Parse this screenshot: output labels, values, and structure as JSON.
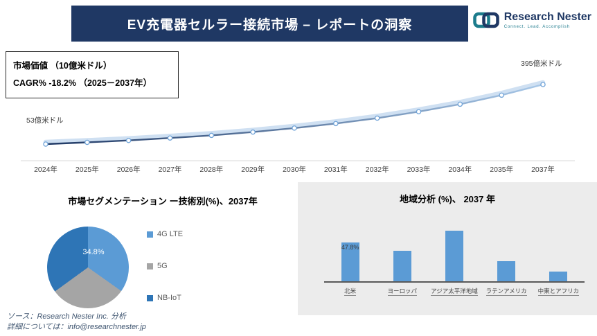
{
  "header": {
    "title": "EV充電器セルラー接続市場 – レポートの洞察",
    "logo_name": "Research Nester",
    "logo_tagline": "Connect. Lead. Accomplish"
  },
  "info_box": {
    "line1": "市場価値 （10億米ドル）",
    "line2": "CAGR% -18.2% （2025－2037年）"
  },
  "footer": {
    "source": "ソース：Research Nester Inc. 分析",
    "contact": "詳細については：info@researchnester.jp"
  },
  "colors": {
    "banner": "#1F3864",
    "line_dark": "#1F3864",
    "line_light": "#A8C8E8",
    "ribbon": "#C3D8EF",
    "marker_stroke": "#6FA3D8",
    "bar_fill": "#5B9BD5",
    "panel_bg": "#ECECEC"
  },
  "chart_data": [
    {
      "type": "line",
      "title": "市場価値（10億米ドル）",
      "x": [
        "2024年",
        "2025年",
        "2026年",
        "2027年",
        "2028年",
        "2029年",
        "2030年",
        "2031年",
        "2032年",
        "2033年",
        "2034年",
        "2035年",
        "2037年"
      ],
      "values": [
        5.3,
        6.3,
        7.4,
        8.8,
        10.3,
        12.2,
        14.5,
        17.1,
        20.2,
        23.9,
        28.2,
        33.4,
        39.5
      ],
      "ylim": [
        5.3,
        39.5
      ],
      "grid": false,
      "legend_position": "none",
      "start_annotation": "53億米ドル",
      "end_annotation": "395億米ドル",
      "cagr_note": "CAGR% -18.2% （2025－2037年）"
    },
    {
      "type": "pie",
      "title": "市場セグメンテーション ー技術別(%)、2037年",
      "labels": [
        "4G LTE",
        "5G",
        "NB-IoT"
      ],
      "values": [
        34.8,
        30.2,
        35.0
      ],
      "colors": [
        "#5B9BD5",
        "#A5A5A5",
        "#2E75B6"
      ],
      "data_labels": [
        {
          "index": 0,
          "text": "34.8%"
        }
      ],
      "legend_position": "right"
    },
    {
      "type": "bar",
      "title": "地域分析 (%)、 2037 年",
      "categories": [
        "北米",
        "ヨーロッパ",
        "アジア太平洋地域",
        "ラテンアメリカ",
        "中東とアフリカ"
      ],
      "values": [
        47.8,
        37.6,
        62.3,
        24.8,
        12.0
      ],
      "data_labels": [
        {
          "index": 0,
          "text": "47.8%"
        }
      ],
      "bar_color": "#5B9BD5",
      "ylim": [
        0,
        70
      ],
      "grid": false
    }
  ]
}
